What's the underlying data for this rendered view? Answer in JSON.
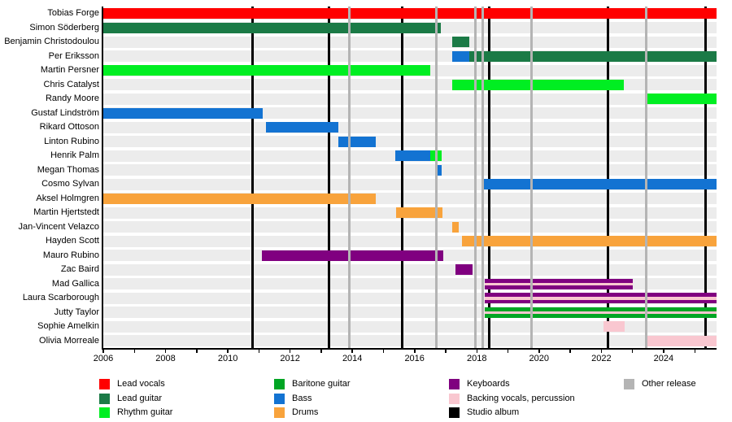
{
  "chart_data": {
    "type": "gantt",
    "title": "",
    "x_axis": {
      "start": 2006,
      "end": 2025.7,
      "major_tick_step": 2,
      "minor_tick_step": 1,
      "tick_labels": [
        "2006",
        "2008",
        "2010",
        "2012",
        "2014",
        "2016",
        "2018",
        "2020",
        "2022",
        "2024"
      ]
    },
    "colors": {
      "lead_vocals": "#FF0000",
      "lead_guitar": "#1B7A46",
      "rhythm_guitar": "#00EE22",
      "baritone_guitar": "#00A524",
      "bass": "#1373D2",
      "drums": "#F8A33C",
      "keyboards": "#800080",
      "backing_vocals": "#F9C7D0",
      "studio_album": "#000000",
      "other_release": "#B4B4B4",
      "row_band": "#ECECEC"
    },
    "members": [
      {
        "name": "Tobias Forge",
        "segments": [
          {
            "role": "lead_vocals",
            "start": 2006,
            "end": 2025.7
          }
        ]
      },
      {
        "name": "Simon Söderberg",
        "segments": [
          {
            "role": "lead_guitar",
            "start": 2006,
            "end": 2016.85
          }
        ]
      },
      {
        "name": "Benjamin Christodoulou",
        "segments": [
          {
            "role": "lead_guitar",
            "start": 2017.22,
            "end": 2017.75
          }
        ]
      },
      {
        "name": "Per Eriksson",
        "segments": [
          {
            "role": "bass",
            "start": 2017.22,
            "end": 2017.75
          },
          {
            "role": "lead_guitar",
            "start": 2017.75,
            "end": 2025.7
          }
        ]
      },
      {
        "name": "Martin Persner",
        "segments": [
          {
            "role": "rhythm_guitar",
            "start": 2006,
            "end": 2016.5
          }
        ]
      },
      {
        "name": "Chris Catalyst",
        "segments": [
          {
            "role": "rhythm_guitar",
            "start": 2017.22,
            "end": 2022.72
          }
        ]
      },
      {
        "name": "Randy Moore",
        "segments": [
          {
            "role": "rhythm_guitar",
            "start": 2023.42,
            "end": 2025.7
          }
        ]
      },
      {
        "name": "Gustaf Lindström",
        "segments": [
          {
            "role": "bass",
            "start": 2006,
            "end": 2011.12
          }
        ]
      },
      {
        "name": "Rikard Ottoson",
        "segments": [
          {
            "role": "bass",
            "start": 2011.22,
            "end": 2013.55
          }
        ]
      },
      {
        "name": "Linton Rubino",
        "segments": [
          {
            "role": "bass",
            "start": 2013.55,
            "end": 2014.76
          }
        ]
      },
      {
        "name": "Henrik Palm",
        "segments": [
          {
            "role": "bass",
            "start": 2015.38,
            "end": 2016.5
          },
          {
            "role": "rhythm_guitar",
            "start": 2016.5,
            "end": 2016.88
          }
        ]
      },
      {
        "name": "Megan Thomas",
        "segments": [
          {
            "role": "bass",
            "start": 2016.73,
            "end": 2016.88
          }
        ]
      },
      {
        "name": "Cosmo Sylvan",
        "segments": [
          {
            "role": "bass",
            "start": 2018.22,
            "end": 2025.7
          }
        ]
      },
      {
        "name": "Aksel Holmgren",
        "segments": [
          {
            "role": "drums",
            "start": 2006,
            "end": 2014.76
          }
        ]
      },
      {
        "name": "Martin Hjertstedt",
        "segments": [
          {
            "role": "drums",
            "start": 2015.4,
            "end": 2016.9
          }
        ]
      },
      {
        "name": "Jan-Vincent Velazco",
        "segments": [
          {
            "role": "drums",
            "start": 2017.2,
            "end": 2017.42
          }
        ]
      },
      {
        "name": "Hayden Scott",
        "segments": [
          {
            "role": "drums",
            "start": 2017.52,
            "end": 2025.7
          }
        ]
      },
      {
        "name": "Mauro Rubino",
        "segments": [
          {
            "role": "keyboards",
            "start": 2011.1,
            "end": 2016.93
          }
        ]
      },
      {
        "name": "Zac Baird",
        "segments": [
          {
            "role": "keyboards",
            "start": 2017.32,
            "end": 2017.87
          }
        ]
      },
      {
        "name": "Mad Gallica",
        "segments": [
          {
            "role": "keyboards",
            "start": 2018.26,
            "end": 2023.0
          }
        ],
        "stripes": [
          {
            "role": "backing_vocals",
            "start": 2018.26,
            "end": 2023.0
          }
        ]
      },
      {
        "name": "Laura Scarborough",
        "segments": [
          {
            "role": "keyboards",
            "start": 2018.26,
            "end": 2025.7
          }
        ],
        "stripes": [
          {
            "role": "backing_vocals",
            "start": 2018.26,
            "end": 2025.7
          }
        ]
      },
      {
        "name": "Jutty Taylor",
        "segments": [
          {
            "role": "baritone_guitar",
            "start": 2018.26,
            "end": 2025.7
          }
        ],
        "stripes": [
          {
            "role": "backing_vocals",
            "start": 2018.26,
            "end": 2025.7
          }
        ]
      },
      {
        "name": "Sophie Amelkin",
        "segments": [
          {
            "role": "backing_vocals",
            "start": 2022.08,
            "end": 2022.74
          }
        ]
      },
      {
        "name": "Olivia Morreale",
        "segments": [
          {
            "role": "backing_vocals",
            "start": 2023.42,
            "end": 2025.7
          }
        ]
      }
    ],
    "releases": {
      "studio_album_years": [
        2010.8,
        2013.25,
        2015.6,
        2018.4,
        2022.2,
        2025.35
      ],
      "other_release_years": [
        2013.9,
        2016.7,
        2017.95,
        2018.2,
        2019.75,
        2023.45
      ]
    }
  },
  "legend": {
    "columns": [
      [
        {
          "label": "Lead vocals",
          "role": "lead_vocals"
        },
        {
          "label": "Lead guitar",
          "role": "lead_guitar"
        },
        {
          "label": "Rhythm guitar",
          "role": "rhythm_guitar"
        }
      ],
      [
        {
          "label": "Baritone guitar",
          "role": "baritone_guitar"
        },
        {
          "label": "Bass",
          "role": "bass"
        },
        {
          "label": "Drums",
          "role": "drums"
        }
      ],
      [
        {
          "label": "Keyboards",
          "role": "keyboards"
        },
        {
          "label": "Backing vocals, percussion",
          "role": "backing_vocals"
        },
        {
          "label": "Studio album",
          "role": "studio_album"
        }
      ],
      [
        {
          "label": "Other release",
          "role": "other_release"
        }
      ]
    ]
  }
}
